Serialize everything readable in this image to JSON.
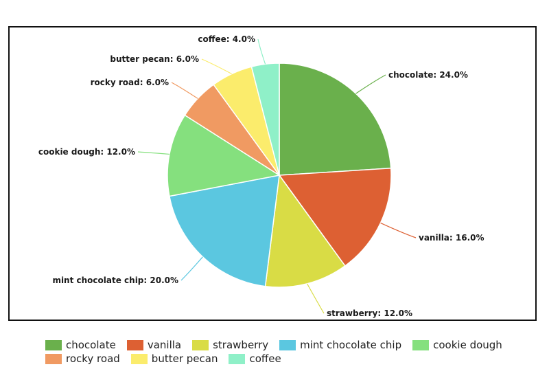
{
  "chart_data": {
    "type": "pie",
    "title": "",
    "slices": [
      {
        "name": "chocolate",
        "value": 24.0,
        "label": "chocolate: 24.0%",
        "color": "#6ab04c"
      },
      {
        "name": "vanilla",
        "value": 16.0,
        "label": "vanilla: 16.0%",
        "color": "#dd6033"
      },
      {
        "name": "strawberry",
        "value": 12.0,
        "label": "strawberry: 12.0%",
        "color": "#d9dc45"
      },
      {
        "name": "mint chocolate chip",
        "value": 20.0,
        "label": "mint chocolate chip: 20.0%",
        "color": "#5bc7e0"
      },
      {
        "name": "cookie dough",
        "value": 12.0,
        "label": "cookie dough: 12.0%",
        "color": "#85e07e"
      },
      {
        "name": "rocky road",
        "value": 6.0,
        "label": "rocky road: 6.0%",
        "color": "#f09a62"
      },
      {
        "name": "butter pecan",
        "value": 6.0,
        "label": "butter pecan: 6.0%",
        "color": "#fbec6c"
      },
      {
        "name": "coffee",
        "value": 4.0,
        "label": "coffee: 4.0%",
        "color": "#8ff0c8"
      }
    ],
    "legend": {
      "placement": "bottom",
      "rows": [
        [
          "chocolate",
          "vanilla",
          "strawberry",
          "mint chocolate chip",
          "cookie dough"
        ],
        [
          "rocky road",
          "butter pecan",
          "coffee"
        ]
      ]
    }
  }
}
